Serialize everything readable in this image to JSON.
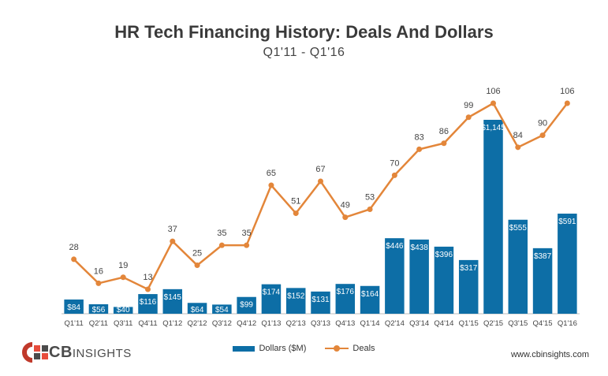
{
  "title": "HR Tech Financing History: Deals And Dollars",
  "subtitle": "Q1'11 - Q1'16",
  "website": "www.cbinsights.com",
  "logo": {
    "bold": "CB",
    "thin": "INSIGHTS"
  },
  "colors": {
    "bars": "#0d6ea6",
    "line": "#e3863a"
  },
  "chart_data": {
    "type": "bar+line",
    "categories": [
      "Q1'11",
      "Q2'11",
      "Q3'11",
      "Q4'11",
      "Q1'12",
      "Q2'12",
      "Q3'12",
      "Q4'12",
      "Q1'13",
      "Q2'13",
      "Q3'13",
      "Q4'13",
      "Q1'14",
      "Q2'14",
      "Q3'14",
      "Q4'14",
      "Q1'15",
      "Q2'15",
      "Q3'15",
      "Q4'15",
      "Q1'16"
    ],
    "series": [
      {
        "name": "Dollars ($M)",
        "type": "bar",
        "values": [
          84,
          56,
          40,
          116,
          145,
          64,
          54,
          99,
          174,
          152,
          131,
          176,
          164,
          446,
          438,
          396,
          317,
          1145,
          555,
          387,
          591
        ],
        "labels": [
          "$84",
          "$56",
          "$40",
          "$116",
          "$145",
          "$64",
          "$54",
          "$99",
          "$174",
          "$152",
          "$131",
          "$176",
          "$164",
          "$446",
          "$438",
          "$396",
          "$317",
          "$1,145",
          "$555",
          "$387",
          "$591"
        ]
      },
      {
        "name": "Deals",
        "type": "line",
        "values": [
          28,
          16,
          19,
          13,
          37,
          25,
          35,
          35,
          65,
          51,
          67,
          49,
          53,
          70,
          83,
          86,
          99,
          106,
          84,
          90,
          106
        ]
      }
    ],
    "legend": "bottom"
  }
}
